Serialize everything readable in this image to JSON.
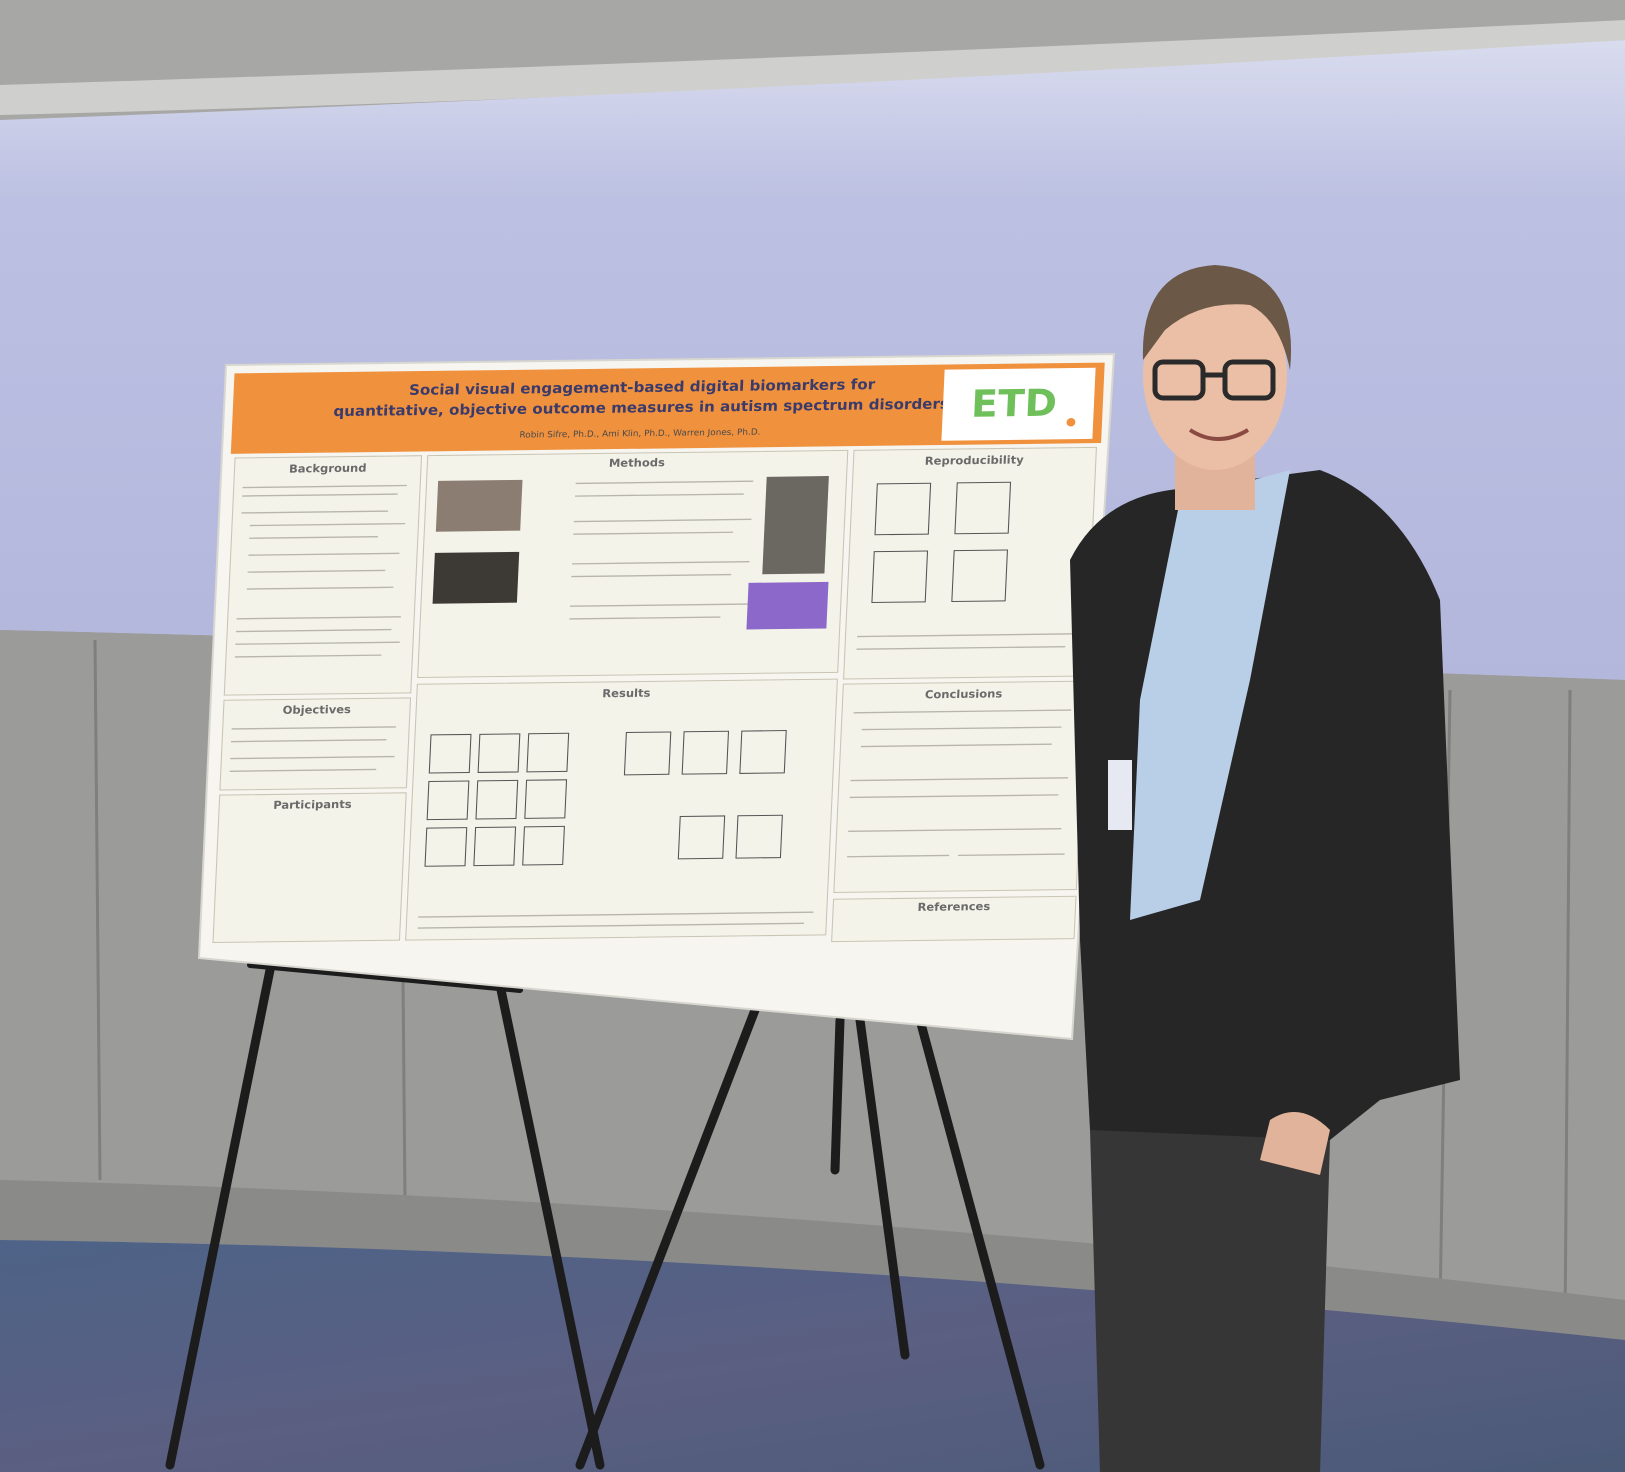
{
  "poster": {
    "title_lines": [
      "Social visual engagement-based digital biomarkers for",
      "quantitative, objective outcome measures in autism spectrum disorders"
    ],
    "authors": "Robin Sifre, Ph.D., Ami Klin, Ph.D., Warren Jones, Ph.D.",
    "logo": "ETD",
    "sections": [
      "Background",
      "Methods",
      "Reproducibility",
      "Objectives",
      "Results",
      "Conclusions",
      "Participants",
      "References"
    ]
  }
}
